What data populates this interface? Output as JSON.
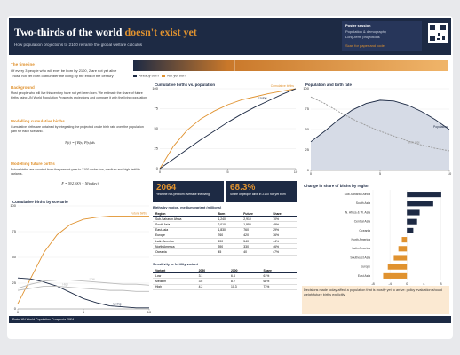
{
  "header": {
    "title": "Two-thirds of the world",
    "title_accent": "doesn't exist yet",
    "subtitle": "How population projections to 2100 reframe the global welfare calculus",
    "info": [
      "Poster session",
      "Population & demography",
      "Long-term projections",
      "Scan for paper and code"
    ]
  },
  "timeline": {
    "heading": "The timeline",
    "lines": [
      "Of every 3 people who will ever be born by 2100, 2 are not yet alive",
      "Those not yet born outnumber the living by the end of the century"
    ],
    "legend": [
      "Already born",
      "Not yet born"
    ]
  },
  "sections": [
    {
      "heading": "Background",
      "text": "Most people who will live this century have not yet been born. We estimate the share of future births using UN World Population Prospects projections and compare it with the living population."
    },
    {
      "heading": "Modelling cumulative births",
      "text": "Cumulative births are obtained by integrating the projected crude birth rate over the population path for each scenario.",
      "formula": "N(t) = ∫ B(s) P(s) ds"
    },
    {
      "heading": "Modelling future births",
      "text": "Future births are counted from the present year to 2100 under low, medium and high fertility variants.",
      "formula": "F = N(2100) − N(today)"
    }
  ],
  "stats": [
    {
      "value": "2064",
      "label": "Year the not-yet-born overtake the living"
    },
    {
      "value": "68.3%",
      "label": "Share of people alive in 2100 not yet born"
    }
  ],
  "tables": [
    {
      "title": "Births by region, medium variant (millions)",
      "header": [
        "Region",
        "Born",
        "Future",
        "Share"
      ],
      "rows": [
        [
          "Sub-Saharan Africa",
          "1,240",
          "2,910",
          "70%"
        ],
        [
          "South Asia",
          "2,010",
          "1,950",
          "49%"
        ],
        [
          "East Asia",
          "1,830",
          "760",
          "29%"
        ],
        [
          "Europe",
          "760",
          "420",
          "36%"
        ],
        [
          "Latin America",
          "690",
          "540",
          "44%"
        ],
        [
          "North America",
          "390",
          "330",
          "46%"
        ],
        [
          "Oceania",
          "45",
          "40",
          "47%"
        ]
      ]
    },
    {
      "title": "Sensitivity to fertility variant",
      "header": [
        "Variant",
        "2050",
        "2100",
        "Share"
      ],
      "rows": [
        [
          "Low",
          "3.1",
          "6.4",
          "61%"
        ],
        [
          "Medium",
          "3.6",
          "8.2",
          "68%"
        ],
        [
          "High",
          "4.2",
          "10.3",
          "73%"
        ]
      ]
    }
  ],
  "note": "Decisions made today affect a population that is mostly yet to arrive: policy evaluation should weigh future births explicitly.",
  "footer": "Data: UN World Population Prospects 2024",
  "chart_data": [
    {
      "type": "line",
      "title": "Cumulative births vs. population",
      "xlim": [
        0,
        10
      ],
      "ylim": [
        0,
        100
      ],
      "yticks": [
        0,
        25,
        50,
        75,
        100
      ],
      "xticks": [
        0,
        5,
        10
      ],
      "grid": true,
      "series": [
        {
          "name": "Cumulative births",
          "color": "#e0922f",
          "x": [
            0,
            1,
            2,
            3,
            4,
            5,
            6,
            7,
            8,
            9,
            10
          ],
          "values": [
            0,
            28,
            48,
            62,
            72,
            80,
            86,
            90,
            94,
            97,
            100
          ]
        },
        {
          "name": "Living",
          "color": "#1d2a44",
          "x": [
            0,
            1,
            2,
            3,
            4,
            5,
            6,
            7,
            8,
            9,
            10
          ],
          "values": [
            0,
            12,
            24,
            36,
            47,
            58,
            68,
            77,
            85,
            93,
            100
          ]
        }
      ]
    },
    {
      "type": "area",
      "title": "Population and birth rate",
      "xlim": [
        0,
        10
      ],
      "ylim": [
        0,
        100
      ],
      "yticks": [
        0,
        25,
        50,
        75,
        100
      ],
      "xticks": [
        0,
        5,
        10
      ],
      "grid": true,
      "series": [
        {
          "name": "Population",
          "color": "#1d2a44",
          "x": [
            0,
            1,
            2,
            3,
            4,
            5,
            6,
            7,
            8,
            9,
            10
          ],
          "values": [
            35,
            48,
            62,
            74,
            82,
            86,
            85,
            80,
            72,
            62,
            50
          ],
          "area": true
        },
        {
          "name": "Birth rate",
          "color": "#999999",
          "x": [
            0,
            1,
            2,
            3,
            4,
            5,
            6,
            7,
            8,
            9,
            10
          ],
          "values": [
            90,
            82,
            72,
            63,
            55,
            48,
            42,
            36,
            31,
            27,
            24
          ],
          "dash": true
        }
      ]
    },
    {
      "type": "line",
      "title": "Cumulative births by scenario",
      "xlim": [
        0,
        10
      ],
      "ylim": [
        0,
        100
      ],
      "yticks": [
        0,
        25,
        50,
        75,
        100
      ],
      "xticks": [
        0,
        5,
        10
      ],
      "grid": true,
      "series": [
        {
          "name": "Future births",
          "color": "#e0922f",
          "x": [
            0,
            1,
            2,
            3,
            4,
            5,
            6,
            7,
            8,
            9,
            10
          ],
          "values": [
            5,
            30,
            55,
            72,
            82,
            87,
            89,
            90,
            90,
            90,
            90
          ]
        },
        {
          "name": "Living",
          "color": "#1d2a44",
          "x": [
            0,
            1,
            2,
            3,
            4,
            5,
            6,
            7,
            8,
            9,
            10
          ],
          "values": [
            30,
            29,
            26,
            22,
            16,
            10,
            6,
            3,
            2,
            1,
            1
          ]
        },
        {
          "name": "Low",
          "color": "#bbbbbb",
          "x": [
            0,
            1,
            2,
            3,
            4,
            5,
            6,
            7,
            8,
            9,
            10
          ],
          "values": [
            20,
            24,
            27,
            28,
            28,
            27,
            26,
            25,
            24,
            24,
            23
          ]
        },
        {
          "name": "High",
          "color": "#bbbbbb",
          "x": [
            0,
            1,
            2,
            3,
            4,
            5,
            6,
            7,
            8,
            9,
            10
          ],
          "values": [
            18,
            20,
            22,
            22,
            21,
            20,
            19,
            18,
            18,
            17,
            17
          ]
        }
      ]
    },
    {
      "type": "barh",
      "title": "Change in share of births by region",
      "xlim": [
        -8,
        10
      ],
      "xticks": [
        -8,
        -4,
        0,
        4,
        8
      ],
      "grid": true,
      "categories": [
        "Sub-Saharan Africa",
        "South Asia",
        "N. Africa & W. Asia",
        "Central Asia",
        "Oceania",
        "North America",
        "Latin America",
        "Southeast Asia",
        "Europe",
        "East Asia"
      ],
      "values": [
        8.1,
        6.2,
        3.0,
        2.4,
        1.5,
        -1.2,
        -2.0,
        -3.1,
        -4.5,
        -5.6
      ],
      "pos_color": "#1d2a44",
      "neg_color": "#e0922f"
    }
  ]
}
